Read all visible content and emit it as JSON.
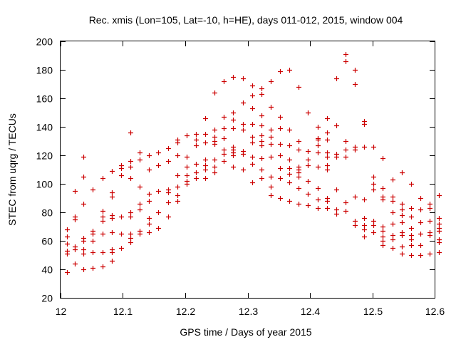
{
  "chart_data": {
    "type": "scatter",
    "title": "Rec. xmis (Lon=105, Lat=-10, h=HE), days 011-012, 2015, window 004",
    "xlabel": "GPS time / Days of year 2015",
    "ylabel": "STEC from uqrg / TECUs",
    "xlim": [
      12,
      12.6
    ],
    "ylim": [
      20,
      200
    ],
    "xticks": [
      "12",
      "12.1",
      "12.2",
      "12.3",
      "12.4",
      "12.5",
      "12.6"
    ],
    "yticks": [
      "20",
      "40",
      "60",
      "80",
      "100",
      "120",
      "140",
      "160",
      "180",
      "200"
    ],
    "marker": "plus",
    "color": "#cc0000",
    "grid": false,
    "points": [
      [
        12.01,
        38
      ],
      [
        12.01,
        51
      ],
      [
        12.01,
        53
      ],
      [
        12.01,
        58
      ],
      [
        12.01,
        63
      ],
      [
        12.01,
        68
      ],
      [
        12.023,
        44
      ],
      [
        12.023,
        54
      ],
      [
        12.023,
        56
      ],
      [
        12.023,
        75
      ],
      [
        12.023,
        77
      ],
      [
        12.023,
        95
      ],
      [
        12.037,
        40
      ],
      [
        12.037,
        51
      ],
      [
        12.037,
        54
      ],
      [
        12.037,
        60
      ],
      [
        12.037,
        62
      ],
      [
        12.037,
        86
      ],
      [
        12.037,
        105
      ],
      [
        12.037,
        119
      ],
      [
        12.052,
        41
      ],
      [
        12.052,
        52
      ],
      [
        12.052,
        60
      ],
      [
        12.052,
        65
      ],
      [
        12.052,
        67
      ],
      [
        12.052,
        96
      ],
      [
        12.067,
        42
      ],
      [
        12.067,
        52
      ],
      [
        12.067,
        65
      ],
      [
        12.067,
        74
      ],
      [
        12.067,
        77
      ],
      [
        12.067,
        81
      ],
      [
        12.067,
        104
      ],
      [
        12.082,
        46
      ],
      [
        12.082,
        52
      ],
      [
        12.082,
        54
      ],
      [
        12.082,
        66
      ],
      [
        12.082,
        76
      ],
      [
        12.082,
        78
      ],
      [
        12.082,
        91
      ],
      [
        12.082,
        94
      ],
      [
        12.082,
        109
      ],
      [
        12.097,
        55
      ],
      [
        12.097,
        65
      ],
      [
        12.097,
        77
      ],
      [
        12.097,
        106
      ],
      [
        12.097,
        111
      ],
      [
        12.097,
        113
      ],
      [
        12.112,
        59
      ],
      [
        12.112,
        62
      ],
      [
        12.112,
        65
      ],
      [
        12.112,
        77
      ],
      [
        12.112,
        80
      ],
      [
        12.112,
        104
      ],
      [
        12.112,
        112
      ],
      [
        12.112,
        116
      ],
      [
        12.112,
        136
      ],
      [
        12.127,
        65
      ],
      [
        12.127,
        67
      ],
      [
        12.127,
        82
      ],
      [
        12.127,
        86
      ],
      [
        12.127,
        98
      ],
      [
        12.127,
        117
      ],
      [
        12.127,
        122
      ],
      [
        12.142,
        66
      ],
      [
        12.142,
        72
      ],
      [
        12.142,
        76
      ],
      [
        12.142,
        88
      ],
      [
        12.142,
        93
      ],
      [
        12.142,
        110
      ],
      [
        12.142,
        120
      ],
      [
        12.157,
        69
      ],
      [
        12.157,
        80
      ],
      [
        12.157,
        95
      ],
      [
        12.157,
        113
      ],
      [
        12.157,
        122
      ],
      [
        12.172,
        77
      ],
      [
        12.172,
        87
      ],
      [
        12.172,
        94
      ],
      [
        12.172,
        96
      ],
      [
        12.172,
        116
      ],
      [
        12.172,
        125
      ],
      [
        12.187,
        88
      ],
      [
        12.187,
        92
      ],
      [
        12.187,
        98
      ],
      [
        12.187,
        106
      ],
      [
        12.187,
        120
      ],
      [
        12.187,
        129
      ],
      [
        12.187,
        131
      ],
      [
        12.202,
        100
      ],
      [
        12.202,
        102
      ],
      [
        12.202,
        106
      ],
      [
        12.202,
        112
      ],
      [
        12.202,
        119
      ],
      [
        12.202,
        134
      ],
      [
        12.217,
        104
      ],
      [
        12.217,
        108
      ],
      [
        12.217,
        114
      ],
      [
        12.217,
        127
      ],
      [
        12.217,
        131
      ],
      [
        12.217,
        135
      ],
      [
        12.232,
        104
      ],
      [
        12.232,
        110
      ],
      [
        12.232,
        113
      ],
      [
        12.232,
        117
      ],
      [
        12.232,
        129
      ],
      [
        12.232,
        135
      ],
      [
        12.232,
        146
      ],
      [
        12.247,
        108
      ],
      [
        12.247,
        112
      ],
      [
        12.247,
        117
      ],
      [
        12.247,
        128
      ],
      [
        12.247,
        130
      ],
      [
        12.247,
        133
      ],
      [
        12.247,
        138
      ],
      [
        12.247,
        164
      ],
      [
        12.262,
        116
      ],
      [
        12.262,
        121
      ],
      [
        12.262,
        124
      ],
      [
        12.262,
        132
      ],
      [
        12.262,
        139
      ],
      [
        12.262,
        147
      ],
      [
        12.262,
        172
      ],
      [
        12.277,
        112
      ],
      [
        12.277,
        120
      ],
      [
        12.277,
        122
      ],
      [
        12.277,
        124
      ],
      [
        12.277,
        126
      ],
      [
        12.277,
        139
      ],
      [
        12.277,
        145
      ],
      [
        12.277,
        150
      ],
      [
        12.277,
        175
      ],
      [
        12.292,
        110
      ],
      [
        12.292,
        121
      ],
      [
        12.292,
        123
      ],
      [
        12.292,
        138
      ],
      [
        12.292,
        142
      ],
      [
        12.292,
        157
      ],
      [
        12.292,
        174
      ],
      [
        12.307,
        101
      ],
      [
        12.307,
        114
      ],
      [
        12.307,
        119
      ],
      [
        12.307,
        129
      ],
      [
        12.307,
        133
      ],
      [
        12.307,
        142
      ],
      [
        12.307,
        153
      ],
      [
        12.307,
        162
      ],
      [
        12.307,
        169
      ],
      [
        12.322,
        104
      ],
      [
        12.322,
        110
      ],
      [
        12.322,
        118
      ],
      [
        12.322,
        127
      ],
      [
        12.322,
        130
      ],
      [
        12.322,
        134
      ],
      [
        12.322,
        141
      ],
      [
        12.322,
        148
      ],
      [
        12.322,
        163
      ],
      [
        12.322,
        167
      ],
      [
        12.337,
        92
      ],
      [
        12.337,
        98
      ],
      [
        12.337,
        105
      ],
      [
        12.337,
        119
      ],
      [
        12.337,
        128
      ],
      [
        12.337,
        133
      ],
      [
        12.337,
        138
      ],
      [
        12.337,
        154
      ],
      [
        12.337,
        172
      ],
      [
        12.352,
        90
      ],
      [
        12.352,
        104
      ],
      [
        12.352,
        111
      ],
      [
        12.352,
        120
      ],
      [
        12.352,
        128
      ],
      [
        12.352,
        139
      ],
      [
        12.352,
        147
      ],
      [
        12.352,
        179
      ],
      [
        12.367,
        88
      ],
      [
        12.367,
        101
      ],
      [
        12.367,
        107
      ],
      [
        12.367,
        111
      ],
      [
        12.367,
        117
      ],
      [
        12.367,
        127
      ],
      [
        12.367,
        138
      ],
      [
        12.367,
        180
      ],
      [
        12.382,
        86
      ],
      [
        12.382,
        97
      ],
      [
        12.382,
        105
      ],
      [
        12.382,
        108
      ],
      [
        12.382,
        110
      ],
      [
        12.382,
        112
      ],
      [
        12.382,
        124
      ],
      [
        12.382,
        130
      ],
      [
        12.382,
        168
      ],
      [
        12.397,
        85
      ],
      [
        12.397,
        93
      ],
      [
        12.397,
        102
      ],
      [
        12.397,
        113
      ],
      [
        12.397,
        117
      ],
      [
        12.397,
        123
      ],
      [
        12.397,
        150
      ],
      [
        12.412,
        83
      ],
      [
        12.412,
        89
      ],
      [
        12.412,
        97
      ],
      [
        12.412,
        112
      ],
      [
        12.412,
        122
      ],
      [
        12.412,
        127
      ],
      [
        12.412,
        131
      ],
      [
        12.412,
        132
      ],
      [
        12.412,
        140
      ],
      [
        12.427,
        83
      ],
      [
        12.427,
        88
      ],
      [
        12.427,
        90
      ],
      [
        12.427,
        110
      ],
      [
        12.427,
        113
      ],
      [
        12.427,
        119
      ],
      [
        12.427,
        122
      ],
      [
        12.427,
        131
      ],
      [
        12.427,
        136
      ],
      [
        12.427,
        146
      ],
      [
        12.442,
        79
      ],
      [
        12.442,
        82
      ],
      [
        12.442,
        96
      ],
      [
        12.442,
        119
      ],
      [
        12.442,
        121
      ],
      [
        12.442,
        141
      ],
      [
        12.442,
        174
      ],
      [
        12.457,
        81
      ],
      [
        12.457,
        87
      ],
      [
        12.457,
        119
      ],
      [
        12.457,
        124
      ],
      [
        12.457,
        130
      ],
      [
        12.457,
        186
      ],
      [
        12.457,
        191
      ],
      [
        12.472,
        71
      ],
      [
        12.472,
        74
      ],
      [
        12.472,
        91
      ],
      [
        12.472,
        124
      ],
      [
        12.472,
        126
      ],
      [
        12.472,
        170
      ],
      [
        12.472,
        180
      ],
      [
        12.487,
        63
      ],
      [
        12.487,
        68
      ],
      [
        12.487,
        71
      ],
      [
        12.487,
        76
      ],
      [
        12.487,
        89
      ],
      [
        12.487,
        126
      ],
      [
        12.487,
        142
      ],
      [
        12.487,
        144
      ],
      [
        12.502,
        66
      ],
      [
        12.502,
        71
      ],
      [
        12.502,
        74
      ],
      [
        12.502,
        96
      ],
      [
        12.502,
        100
      ],
      [
        12.502,
        105
      ],
      [
        12.502,
        126
      ],
      [
        12.517,
        57
      ],
      [
        12.517,
        60
      ],
      [
        12.517,
        63
      ],
      [
        12.517,
        67
      ],
      [
        12.517,
        70
      ],
      [
        12.517,
        89
      ],
      [
        12.517,
        91
      ],
      [
        12.517,
        97
      ],
      [
        12.517,
        118
      ],
      [
        12.532,
        55
      ],
      [
        12.532,
        61
      ],
      [
        12.532,
        64
      ],
      [
        12.532,
        72
      ],
      [
        12.532,
        80
      ],
      [
        12.532,
        88
      ],
      [
        12.532,
        91
      ],
      [
        12.532,
        103
      ],
      [
        12.547,
        51
      ],
      [
        12.547,
        56
      ],
      [
        12.547,
        64
      ],
      [
        12.547,
        66
      ],
      [
        12.547,
        73
      ],
      [
        12.547,
        78
      ],
      [
        12.547,
        82
      ],
      [
        12.547,
        86
      ],
      [
        12.547,
        108
      ],
      [
        12.562,
        50
      ],
      [
        12.562,
        57
      ],
      [
        12.562,
        61
      ],
      [
        12.562,
        64
      ],
      [
        12.562,
        69
      ],
      [
        12.562,
        77
      ],
      [
        12.562,
        83
      ],
      [
        12.562,
        100
      ],
      [
        12.577,
        50
      ],
      [
        12.577,
        57
      ],
      [
        12.577,
        65
      ],
      [
        12.577,
        73
      ],
      [
        12.577,
        82
      ],
      [
        12.577,
        90
      ],
      [
        12.592,
        51
      ],
      [
        12.592,
        64
      ],
      [
        12.592,
        66
      ],
      [
        12.592,
        74
      ],
      [
        12.592,
        83
      ],
      [
        12.592,
        86
      ],
      [
        12.607,
        52
      ],
      [
        12.607,
        59
      ],
      [
        12.607,
        61
      ],
      [
        12.607,
        67
      ],
      [
        12.607,
        69
      ],
      [
        12.607,
        72
      ],
      [
        12.607,
        76
      ],
      [
        12.607,
        92
      ]
    ]
  }
}
